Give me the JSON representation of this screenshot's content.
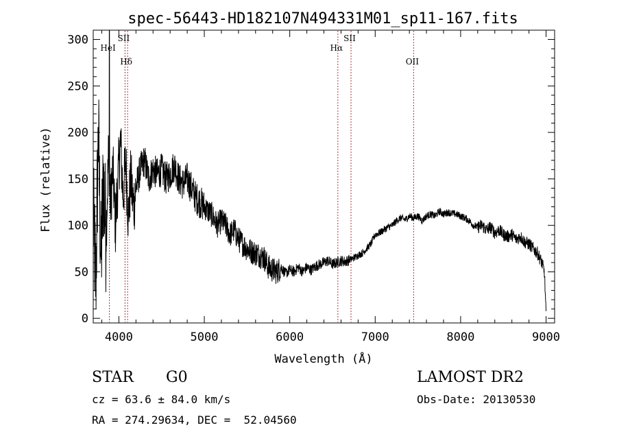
{
  "chart_data": {
    "type": "line",
    "title": "spec-56443-HD182107N494331M01_sp11-167.fits",
    "xlabel": "Wavelength (Å)",
    "ylabel": "Flux (relative)",
    "xlim": [
      3700,
      9100
    ],
    "ylim": [
      -5,
      310
    ],
    "x_ticks": [
      4000,
      5000,
      6000,
      7000,
      8000,
      9000
    ],
    "y_ticks": [
      0,
      50,
      100,
      150,
      200,
      250,
      300
    ],
    "grid": false,
    "line_color": "#000000",
    "marker_color": "#b03030",
    "lines": [
      {
        "label": "HeI",
        "x": 3889
      },
      {
        "label": "SII",
        "x": 4072
      },
      {
        "label": "Hδ",
        "x": 4102
      },
      {
        "label": "Hα",
        "x": 6563
      },
      {
        "label": "SII",
        "x": 6717
      },
      {
        "label": "OII",
        "x": 7450
      }
    ],
    "series": {
      "x": [
        3700,
        3730,
        3760,
        3790,
        3820,
        3850,
        3880,
        3900,
        3930,
        3960,
        3990,
        4020,
        4050,
        4080,
        4110,
        4140,
        4170,
        4200,
        4250,
        4300,
        4350,
        4400,
        4450,
        4500,
        4550,
        4600,
        4650,
        4700,
        4750,
        4800,
        4850,
        4900,
        4950,
        5000,
        5050,
        5100,
        5150,
        5200,
        5250,
        5300,
        5350,
        5400,
        5450,
        5500,
        5550,
        5600,
        5650,
        5700,
        5750,
        5800,
        5850,
        5900,
        5950,
        6000,
        6050,
        6100,
        6150,
        6200,
        6250,
        6300,
        6350,
        6400,
        6450,
        6500,
        6550,
        6600,
        6650,
        6700,
        6750,
        6800,
        6850,
        6900,
        6950,
        7000,
        7050,
        7100,
        7150,
        7200,
        7250,
        7300,
        7350,
        7400,
        7450,
        7500,
        7550,
        7600,
        7650,
        7700,
        7750,
        7800,
        7850,
        7900,
        7950,
        8000,
        8050,
        8100,
        8150,
        8200,
        8250,
        8300,
        8350,
        8400,
        8450,
        8500,
        8550,
        8600,
        8650,
        8700,
        8750,
        8800,
        8850,
        8900,
        8950,
        8980,
        9000
      ],
      "y": [
        110,
        40,
        200,
        60,
        150,
        90,
        180,
        120,
        160,
        100,
        150,
        190,
        130,
        170,
        110,
        150,
        120,
        140,
        160,
        170,
        150,
        160,
        155,
        160,
        150,
        155,
        165,
        150,
        145,
        150,
        140,
        130,
        125,
        120,
        115,
        110,
        100,
        105,
        100,
        90,
        95,
        85,
        80,
        75,
        72,
        70,
        68,
        65,
        55,
        52,
        50,
        55,
        48,
        52,
        50,
        55,
        50,
        55,
        52,
        56,
        58,
        60,
        62,
        58,
        60,
        62,
        61,
        63,
        65,
        68,
        70,
        75,
        80,
        90,
        92,
        95,
        98,
        100,
        105,
        108,
        106,
        110,
        108,
        110,
        105,
        110,
        112,
        110,
        115,
        112,
        114,
        113,
        112,
        110,
        108,
        105,
        100,
        98,
        100,
        95,
        98,
        92,
        95,
        90,
        88,
        90,
        85,
        88,
        82,
        80,
        75,
        70,
        60,
        50,
        5
      ]
    }
  },
  "info": {
    "class_label": "STAR",
    "subclass": "G0",
    "cz": "cz = 63.6 ± 84.0 km/s",
    "radec": "RA = 274.29634, DEC =  52.04560",
    "survey": "LAMOST DR2",
    "obsdate": "Obs-Date: 20130530"
  }
}
